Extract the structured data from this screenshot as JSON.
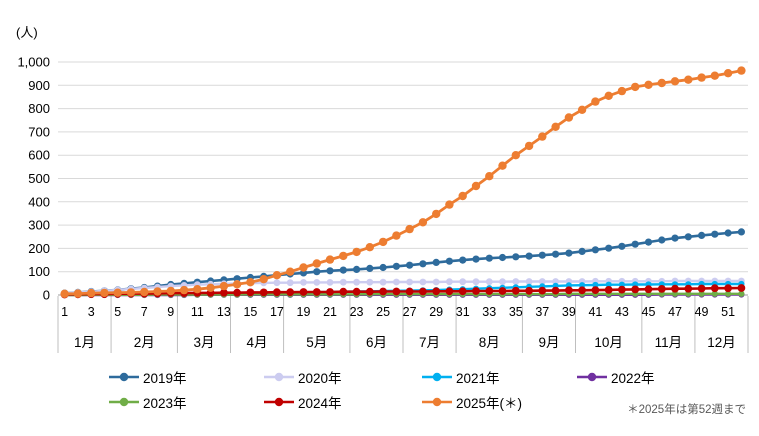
{
  "footnote": "＊2025年は第52週まで",
  "chart_data": {
    "type": "line",
    "ylabel": "(人)",
    "ylim": [
      0,
      1000
    ],
    "y_tick_labels": [
      "0",
      "100",
      "200",
      "300",
      "400",
      "500",
      "600",
      "700",
      "800",
      "900",
      "1,000"
    ],
    "x_weeks": 52,
    "week_tick_labels": [
      "1",
      "3",
      "5",
      "7",
      "9",
      "11",
      "13",
      "15",
      "17",
      "19",
      "21",
      "23",
      "25",
      "27",
      "29",
      "31",
      "33",
      "35",
      "37",
      "39",
      "41",
      "43",
      "45",
      "47",
      "49",
      "51"
    ],
    "month_groups": [
      {
        "label": "1月",
        "start": 1,
        "end": 4
      },
      {
        "label": "2月",
        "start": 5,
        "end": 9
      },
      {
        "label": "3月",
        "start": 10,
        "end": 13
      },
      {
        "label": "4月",
        "start": 14,
        "end": 17
      },
      {
        "label": "5月",
        "start": 18,
        "end": 22
      },
      {
        "label": "6月",
        "start": 23,
        "end": 26
      },
      {
        "label": "7月",
        "start": 27,
        "end": 30
      },
      {
        "label": "8月",
        "start": 31,
        "end": 35
      },
      {
        "label": "9月",
        "start": 36,
        "end": 39
      },
      {
        "label": "10月",
        "start": 40,
        "end": 44
      },
      {
        "label": "11月",
        "start": 45,
        "end": 48
      },
      {
        "label": "12月",
        "start": 49,
        "end": 52
      }
    ],
    "grid": true,
    "legend_position": "bottom",
    "legend_rows": [
      [
        0,
        1,
        2,
        3
      ],
      [
        4,
        5,
        6
      ]
    ],
    "series": [
      {
        "name": "2019年",
        "color": "#2E6B9C",
        "values": [
          8,
          11,
          15,
          18,
          22,
          27,
          32,
          38,
          45,
          50,
          55,
          60,
          65,
          70,
          75,
          80,
          85,
          90,
          95,
          100,
          104,
          107,
          110,
          114,
          118,
          123,
          128,
          134,
          140,
          145,
          150,
          154,
          158,
          161,
          164,
          167,
          171,
          175,
          180,
          187,
          194,
          201,
          209,
          218,
          227,
          236,
          244,
          250,
          256,
          261,
          266,
          271
        ]
      },
      {
        "name": "2020年",
        "color": "#CCCCF0",
        "values": [
          8,
          11,
          14,
          18,
          22,
          26,
          30,
          34,
          38,
          41,
          44,
          46,
          48,
          50,
          51,
          52,
          53,
          53,
          54,
          54,
          54,
          55,
          55,
          55,
          55,
          56,
          56,
          56,
          56,
          57,
          57,
          57,
          57,
          57,
          58,
          58,
          58,
          58,
          58,
          58,
          59,
          59,
          59,
          59,
          59,
          59,
          60,
          60,
          60,
          60,
          60,
          60
        ]
      },
      {
        "name": "2021年",
        "color": "#00B0F0",
        "values": [
          1,
          2,
          2,
          3,
          3,
          4,
          4,
          5,
          5,
          6,
          6,
          7,
          7,
          8,
          8,
          9,
          10,
          10,
          11,
          12,
          13,
          14,
          15,
          16,
          17,
          18,
          19,
          20,
          21,
          23,
          25,
          27,
          29,
          31,
          33,
          35,
          37,
          39,
          41,
          42,
          43,
          44,
          44,
          45,
          45,
          46,
          46,
          46,
          47,
          47,
          47,
          47
        ]
      },
      {
        "name": "2022年",
        "color": "#7030A0",
        "values": [
          0,
          0,
          0,
          0,
          0,
          0,
          0,
          0,
          0,
          0,
          1,
          1,
          1,
          1,
          1,
          1,
          1,
          1,
          1,
          1,
          1,
          1,
          1,
          1,
          1,
          1,
          1,
          1,
          1,
          1,
          1,
          1,
          1,
          1,
          1,
          1,
          1,
          1,
          1,
          1,
          1,
          1,
          1,
          1,
          1,
          2,
          2,
          2,
          2,
          2,
          2,
          2
        ]
      },
      {
        "name": "2023年",
        "color": "#70AD47",
        "values": [
          0,
          0,
          1,
          1,
          1,
          1,
          1,
          2,
          2,
          2,
          2,
          2,
          2,
          2,
          3,
          3,
          3,
          3,
          3,
          3,
          3,
          3,
          3,
          4,
          4,
          4,
          4,
          4,
          4,
          4,
          4,
          4,
          4,
          4,
          4,
          4,
          4,
          4,
          5,
          5,
          5,
          5,
          5,
          5,
          5,
          5,
          5,
          5,
          5,
          5,
          5,
          5
        ]
      },
      {
        "name": "2024年",
        "color": "#C00000",
        "values": [
          2,
          3,
          4,
          4,
          5,
          6,
          6,
          7,
          8,
          8,
          9,
          9,
          10,
          10,
          11,
          11,
          12,
          12,
          13,
          13,
          13,
          14,
          14,
          14,
          15,
          15,
          15,
          15,
          16,
          16,
          16,
          17,
          17,
          17,
          18,
          18,
          19,
          19,
          20,
          20,
          21,
          22,
          23,
          24,
          25,
          26,
          27,
          27,
          28,
          29,
          29,
          30
        ]
      },
      {
        "name": "2025年(＊)",
        "color": "#ED7D31",
        "values": [
          5,
          6,
          8,
          9,
          10,
          11,
          13,
          15,
          17,
          21,
          25,
          31,
          38,
          46,
          55,
          68,
          85,
          100,
          118,
          135,
          152,
          168,
          185,
          205,
          228,
          255,
          283,
          312,
          348,
          388,
          425,
          468,
          510,
          555,
          600,
          640,
          680,
          722,
          762,
          795,
          830,
          855,
          875,
          893,
          902,
          910,
          917,
          924,
          933,
          941,
          952,
          963
        ]
      }
    ]
  }
}
